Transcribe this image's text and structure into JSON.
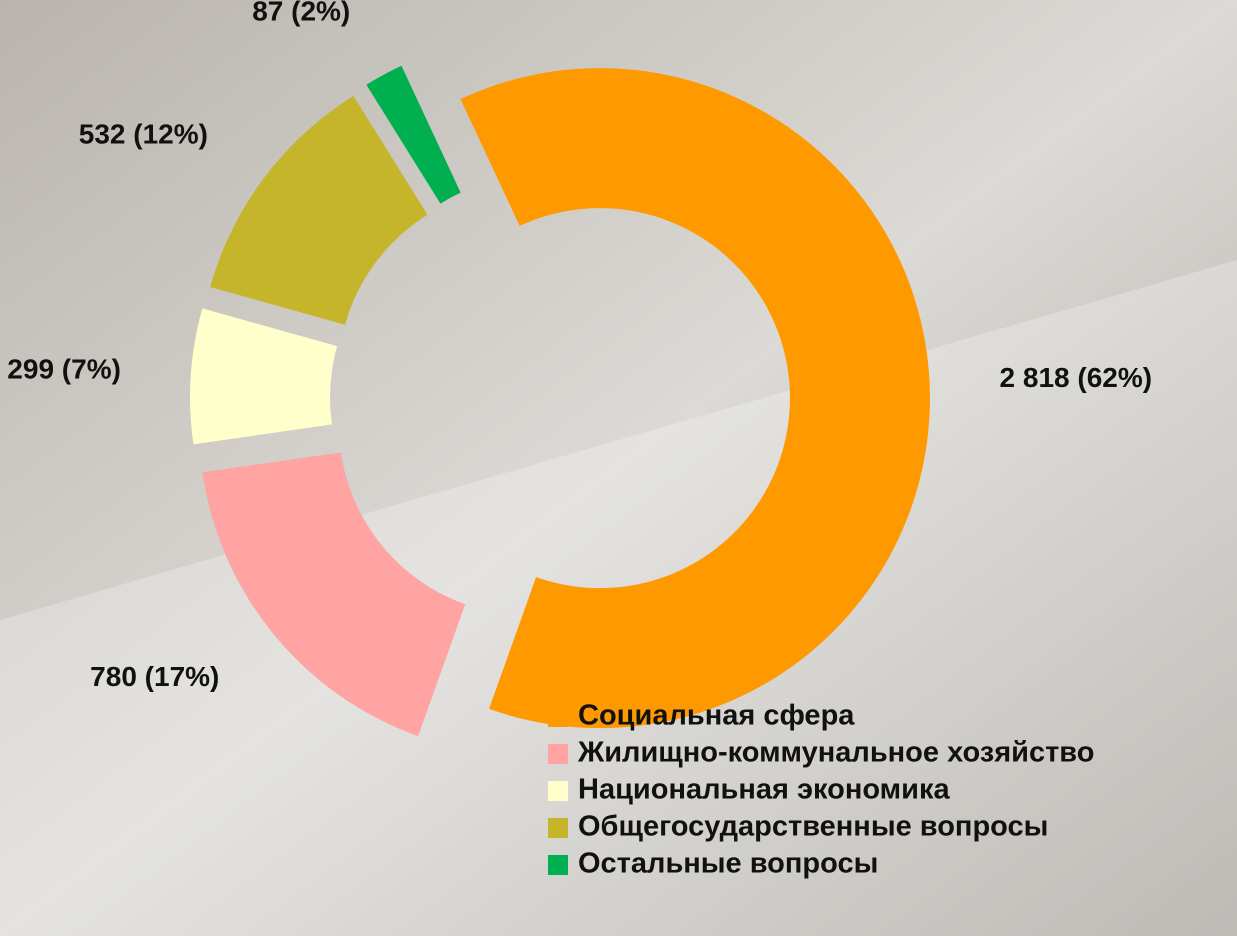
{
  "chart_data": {
    "type": "donut",
    "categories": [
      "Социальная сфера",
      "Жилищно-коммунальное хозяйство",
      "Национальная экономика",
      "Общегосударственные вопросы",
      "Остальные вопросы"
    ],
    "values": [
      2818,
      780,
      299,
      532,
      87
    ],
    "value_labels": [
      "2 818 (62%)",
      "780 (17%)",
      "299 (7%)",
      "532 (12%)",
      "87 (2%)"
    ],
    "colors": [
      "#ff9900",
      "#ffa3a3",
      "#ffffcc",
      "#c4b52a",
      "#00b050"
    ]
  }
}
